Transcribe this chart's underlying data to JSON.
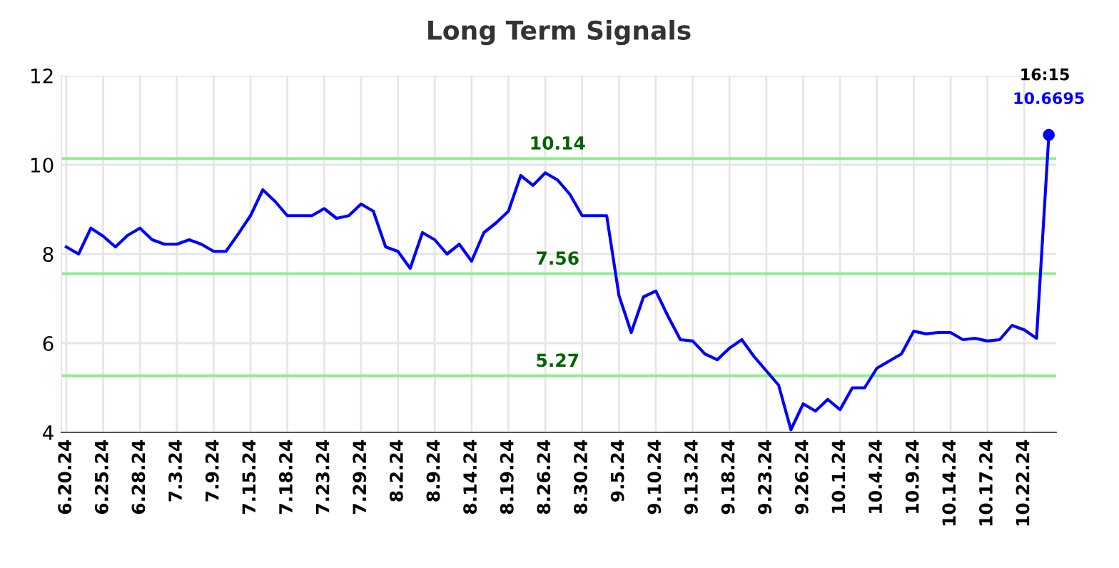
{
  "chart_data": {
    "type": "line",
    "title": "Long Term Signals",
    "categories": [
      "6.20.24",
      null,
      null,
      "6.25.24",
      null,
      null,
      "6.28.24",
      null,
      null,
      "7.3.24",
      null,
      null,
      "7.9.24",
      null,
      null,
      "7.15.24",
      null,
      null,
      "7.18.24",
      null,
      null,
      "7.23.24",
      null,
      null,
      "7.29.24",
      null,
      null,
      "8.2.24",
      null,
      null,
      "8.9.24",
      null,
      null,
      "8.14.24",
      null,
      null,
      "8.19.24",
      null,
      null,
      "8.26.24",
      null,
      null,
      "8.30.24",
      null,
      null,
      "9.5.24",
      null,
      null,
      "9.10.24",
      null,
      null,
      "9.13.24",
      null,
      null,
      "9.18.24",
      null,
      null,
      "9.23.24",
      null,
      null,
      "9.26.24",
      null,
      null,
      "10.1.24",
      null,
      null,
      "10.4.24",
      null,
      null,
      "10.9.24",
      null,
      null,
      "10.14.24",
      null,
      null,
      "10.17.24",
      null,
      null,
      "10.22.24",
      null,
      null
    ],
    "series": [
      {
        "color": "#0000ff",
        "values": [
          8.16,
          8.0,
          8.58,
          8.4,
          8.16,
          8.42,
          8.58,
          8.32,
          8.22,
          8.22,
          8.32,
          8.22,
          8.06,
          8.06,
          8.45,
          8.86,
          9.44,
          9.18,
          8.86,
          8.86,
          8.86,
          9.02,
          8.8,
          8.86,
          9.12,
          8.96,
          8.16,
          8.06,
          7.68,
          8.48,
          8.32,
          8.0,
          8.22,
          7.84,
          8.48,
          8.7,
          8.96,
          9.76,
          9.54,
          9.82,
          9.66,
          9.34,
          8.86,
          8.86,
          8.86,
          7.07,
          6.24,
          7.04,
          7.17,
          6.6,
          6.08,
          6.05,
          5.76,
          5.63,
          5.89,
          6.08,
          5.7,
          5.38,
          5.06,
          4.06,
          4.64,
          4.48,
          4.74,
          4.51,
          5.0,
          5.0,
          5.44,
          5.6,
          5.76,
          6.27,
          6.21,
          6.24,
          6.24,
          6.08,
          6.11,
          6.05,
          6.08,
          6.4,
          6.3,
          6.11,
          10.6695
        ]
      }
    ],
    "ylim": [
      4,
      12
    ],
    "yticks": [
      4,
      6,
      8,
      10,
      12
    ],
    "grid": true,
    "marker": "none",
    "line_style": "solid",
    "ref_lines": [
      {
        "axis": "y",
        "value": 10.14,
        "label": "10.14",
        "color": "#90ee90"
      },
      {
        "axis": "y",
        "value": 7.56,
        "label": "7.56",
        "color": "#90ee90"
      },
      {
        "axis": "y",
        "value": 5.27,
        "label": "5.27",
        "color": "#90ee90"
      }
    ],
    "annotations": [
      "16:15",
      {
        "text": "10.6695",
        "y": 10.6695
      }
    ]
  }
}
